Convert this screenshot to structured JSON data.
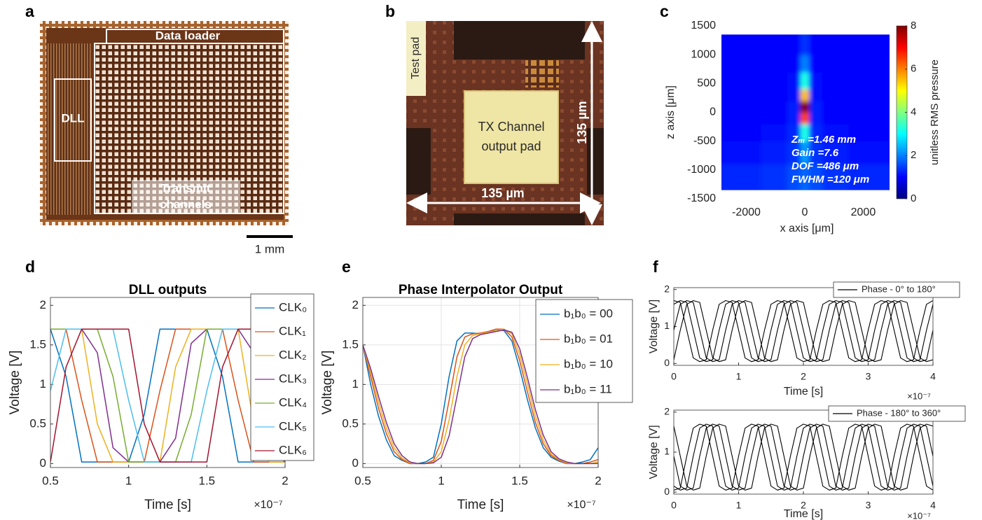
{
  "panel_labels": [
    "a",
    "b",
    "c",
    "d",
    "e",
    "f"
  ],
  "photo_a": {
    "data_loader": "Data loader",
    "dll": "DLL",
    "transmit": [
      "Transmit",
      "channels"
    ],
    "scale": "1 mm"
  },
  "photo_b": {
    "test_pad": "Test pad",
    "pad": [
      "TX Channel",
      "output pad"
    ],
    "dim_x": "135 µm",
    "dim_y": "135 µm"
  },
  "chart_data": [
    {
      "type": "heatmap",
      "xlabel": "x axis [μm]",
      "ylabel": "z axis [μm]",
      "colorbar_label": "unitless RMS pressure",
      "xlim": [
        -2850,
        2900
      ],
      "ylim": [
        -1500,
        1500
      ],
      "xticks": [
        -2000,
        0,
        2000
      ],
      "yticks": [
        -1500,
        -1000,
        -500,
        0,
        500,
        1000,
        1500
      ],
      "clim": [
        0,
        8
      ],
      "cticks": [
        0,
        2,
        4,
        6,
        8
      ],
      "colormap": "jet",
      "xbins": [
        -2850,
        -1500,
        -600,
        -150,
        150,
        600,
        1500,
        2900
      ],
      "zbins": [
        -1350,
        -900,
        -500,
        -200,
        0,
        200,
        400,
        700,
        1000,
        1350
      ],
      "values": [
        [
          1.3,
          1.4,
          1.6,
          1.8,
          1.6,
          1.4,
          1.3
        ],
        [
          1.1,
          1.2,
          1.4,
          2.2,
          1.4,
          1.2,
          1.1
        ],
        [
          1.0,
          1.1,
          1.3,
          3.2,
          1.3,
          1.1,
          1.0
        ],
        [
          1.0,
          1.0,
          1.2,
          6.5,
          1.2,
          1.0,
          1.0
        ],
        [
          1.0,
          1.0,
          1.2,
          8.0,
          1.2,
          1.0,
          1.0
        ],
        [
          1.0,
          1.0,
          1.1,
          5.5,
          1.1,
          1.0,
          1.0
        ],
        [
          1.0,
          1.0,
          1.1,
          3.2,
          1.1,
          1.0,
          1.0
        ],
        [
          1.0,
          1.0,
          1.0,
          2.0,
          1.0,
          1.0,
          1.0
        ],
        [
          1.0,
          1.0,
          1.0,
          1.4,
          1.0,
          1.0,
          1.0
        ]
      ],
      "annotations": [
        "Zₘ =1.46 mm",
        "Gain =7.6",
        "DOF =486 μm",
        "FWHM =120 μm"
      ]
    },
    {
      "type": "line",
      "title": "DLL outputs",
      "xlabel": "Time [s]",
      "ylabel": "Voltage [V]",
      "x_exponent": "×10⁻⁷",
      "xlim": [
        0.5,
        2
      ],
      "ylim": [
        -0.05,
        2.1
      ],
      "xticks": [
        0.5,
        1,
        1.5,
        2
      ],
      "yticks": [
        0,
        0.5,
        1,
        1.5,
        2
      ],
      "grid": false,
      "x": [
        0.5,
        0.6,
        0.7,
        0.8,
        0.9,
        1.0,
        1.1,
        1.2,
        1.3,
        1.4,
        1.5,
        1.6,
        1.7,
        1.8,
        1.9,
        2.0
      ],
      "series": [
        {
          "name": "CLK₀",
          "color": "#0072bd",
          "values": [
            1.7,
            1.1,
            0.02,
            0.02,
            0.02,
            0.02,
            0.62,
            1.7,
            1.7,
            1.7,
            1.7,
            1.1,
            0.02,
            0.02,
            0.02,
            0.02
          ]
        },
        {
          "name": "CLK₁",
          "color": "#d95319",
          "values": [
            1.7,
            1.7,
            0.8,
            0.02,
            0.02,
            0.02,
            0.02,
            0.92,
            1.7,
            1.7,
            1.7,
            1.7,
            0.8,
            0.02,
            0.02,
            0.02
          ]
        },
        {
          "name": "CLK₂",
          "color": "#edb120",
          "values": [
            1.7,
            1.7,
            1.7,
            0.5,
            0.02,
            0.02,
            0.02,
            0.02,
            1.22,
            1.7,
            1.7,
            1.7,
            1.7,
            0.5,
            0.02,
            0.02
          ]
        },
        {
          "name": "CLK₃",
          "color": "#7e2f8e",
          "values": [
            1.7,
            1.7,
            1.7,
            1.4,
            0.2,
            0.02,
            0.02,
            0.02,
            0.32,
            1.52,
            1.7,
            1.7,
            1.7,
            1.4,
            0.2,
            0.02
          ]
        },
        {
          "name": "CLK₄",
          "color": "#77ac30",
          "values": [
            1.7,
            1.7,
            1.7,
            1.7,
            1.1,
            0.02,
            0.02,
            0.02,
            0.02,
            0.62,
            1.7,
            1.7,
            1.7,
            1.7,
            1.1,
            0.02
          ]
        },
        {
          "name": "CLK₅",
          "color": "#4dbeee",
          "values": [
            0.92,
            1.7,
            1.7,
            1.7,
            1.7,
            0.8,
            0.02,
            0.02,
            0.02,
            0.02,
            0.92,
            1.7,
            1.7,
            1.7,
            1.7,
            0.8
          ]
        },
        {
          "name": "CLK₆",
          "color": "#a2142f",
          "values": [
            0.02,
            1.22,
            1.7,
            1.7,
            1.7,
            1.7,
            0.5,
            0.02,
            0.02,
            0.02,
            0.02,
            1.22,
            1.7,
            1.7,
            1.7,
            1.7
          ]
        }
      ]
    },
    {
      "type": "line",
      "title": "Phase Interpolator Output",
      "xlabel": "Time [s]",
      "ylabel": "Voltage [V]",
      "x_exponent": "×10⁻⁷",
      "xlim": [
        0.5,
        2
      ],
      "ylim": [
        -0.05,
        2.1
      ],
      "xticks": [
        0.5,
        1,
        1.5,
        2
      ],
      "yticks": [
        0,
        0.5,
        1,
        1.5,
        2
      ],
      "grid": true,
      "x": [
        0.5,
        0.55,
        0.6,
        0.65,
        0.7,
        0.75,
        0.8,
        0.85,
        0.9,
        0.95,
        1.0,
        1.05,
        1.1,
        1.15,
        1.2,
        1.25,
        1.3,
        1.35,
        1.4,
        1.45,
        1.5,
        1.55,
        1.6,
        1.65,
        1.7,
        1.75,
        1.8,
        1.85,
        1.9,
        1.95,
        2.0
      ],
      "series": [
        {
          "name": "b₁b₀ = 00",
          "color": "#0072bd",
          "values": [
            1.5,
            1.0,
            0.6,
            0.3,
            0.1,
            0.04,
            0.0,
            0.0,
            0.02,
            0.08,
            0.5,
            1.1,
            1.55,
            1.65,
            1.65,
            1.64,
            1.66,
            1.7,
            1.68,
            1.55,
            1.2,
            0.8,
            0.45,
            0.2,
            0.08,
            0.03,
            0.0,
            0.0,
            0.02,
            0.05,
            0.2
          ]
        },
        {
          "name": "b₁b₀ = 01",
          "color": "#d95319",
          "values": [
            1.5,
            1.1,
            0.7,
            0.38,
            0.15,
            0.05,
            0.0,
            0.0,
            0.0,
            0.04,
            0.28,
            0.8,
            1.35,
            1.6,
            1.64,
            1.65,
            1.67,
            1.7,
            1.7,
            1.6,
            1.3,
            0.9,
            0.52,
            0.25,
            0.1,
            0.04,
            0.0,
            0.0,
            0.0,
            0.02,
            0.05
          ]
        },
        {
          "name": "b₁b₀ = 10",
          "color": "#edb120",
          "values": [
            1.5,
            1.15,
            0.78,
            0.45,
            0.2,
            0.07,
            0.01,
            0.0,
            0.0,
            0.02,
            0.15,
            0.55,
            1.1,
            1.5,
            1.62,
            1.64,
            1.66,
            1.68,
            1.7,
            1.64,
            1.38,
            1.0,
            0.6,
            0.3,
            0.12,
            0.05,
            0.01,
            0.0,
            0.0,
            0.0,
            0.02
          ]
        },
        {
          "name": "b₁b₀ = 11",
          "color": "#7e2f8e",
          "values": [
            1.5,
            1.2,
            0.85,
            0.52,
            0.25,
            0.1,
            0.02,
            0.0,
            0.0,
            0.01,
            0.08,
            0.35,
            0.85,
            1.35,
            1.58,
            1.63,
            1.65,
            1.67,
            1.69,
            1.66,
            1.45,
            1.08,
            0.68,
            0.36,
            0.15,
            0.06,
            0.02,
            0.0,
            0.0,
            0.0,
            0.0
          ]
        }
      ]
    },
    {
      "type": "line",
      "xlabel": "Time [s]",
      "ylabel": "Voltage [V]",
      "x_exponent": "×10⁻⁷",
      "legend_label": "Phase - 0° to 180°",
      "color": "#000000",
      "xlim": [
        0,
        4
      ],
      "ylim": [
        -0.05,
        2.05
      ],
      "xticks": [
        0,
        1,
        2,
        3,
        4
      ],
      "yticks": [
        0,
        1,
        2
      ],
      "grid": false,
      "x": [
        0,
        0.1,
        0.2,
        0.3,
        0.4,
        0.5,
        0.6,
        0.7,
        0.8,
        0.9,
        1,
        1.1,
        1.2,
        1.3,
        1.4,
        1.5,
        1.6,
        1.7,
        1.8,
        1.9,
        2,
        2.1,
        2.2,
        2.3,
        2.4,
        2.5,
        2.6,
        2.7,
        2.8,
        2.9,
        3,
        3.1,
        3.2,
        3.3,
        3.4,
        3.5,
        3.6,
        3.7,
        3.8,
        3.9,
        4
      ],
      "series": [
        {
          "values": [
            0.1,
            0.9,
            1.6,
            1.7,
            1.65,
            0.9,
            0.15,
            0.05,
            0.1,
            0.9,
            1.6,
            1.7,
            1.65,
            0.9,
            0.15,
            0.05,
            0.1,
            0.9,
            1.6,
            1.7,
            1.65,
            0.9,
            0.15,
            0.05,
            0.1,
            0.9,
            1.6,
            1.7,
            1.65,
            0.9,
            0.15,
            0.05,
            0.1,
            0.9,
            1.6,
            1.7,
            1.65,
            0.9,
            0.15,
            0.05,
            0.1
          ]
        },
        {
          "values": [
            0.9,
            1.6,
            1.7,
            1.65,
            0.9,
            0.15,
            0.05,
            0.1,
            0.9,
            1.6,
            1.7,
            1.65,
            0.9,
            0.15,
            0.05,
            0.1,
            0.9,
            1.6,
            1.7,
            1.65,
            0.9,
            0.15,
            0.05,
            0.1,
            0.9,
            1.6,
            1.7,
            1.65,
            0.9,
            0.15,
            0.05,
            0.1,
            0.9,
            1.6,
            1.7,
            1.65,
            0.9,
            0.15,
            0.05,
            0.1,
            0.9
          ]
        },
        {
          "values": [
            1.6,
            1.7,
            1.65,
            0.9,
            0.15,
            0.05,
            0.1,
            0.9,
            1.6,
            1.7,
            1.65,
            0.9,
            0.15,
            0.05,
            0.1,
            0.9,
            1.6,
            1.7,
            1.65,
            0.9,
            0.15,
            0.05,
            0.1,
            0.9,
            1.6,
            1.7,
            1.65,
            0.9,
            0.15,
            0.05,
            0.1,
            0.9,
            1.6,
            1.7,
            1.65,
            0.9,
            0.15,
            0.05,
            0.1,
            0.9,
            1.6
          ]
        },
        {
          "values": [
            1.7,
            1.65,
            0.9,
            0.15,
            0.05,
            0.1,
            0.9,
            1.6,
            1.7,
            1.65,
            0.9,
            0.15,
            0.05,
            0.1,
            0.9,
            1.6,
            1.7,
            1.65,
            0.9,
            0.15,
            0.05,
            0.1,
            0.9,
            1.6,
            1.7,
            1.65,
            0.9,
            0.15,
            0.05,
            0.1,
            0.9,
            1.6,
            1.7,
            1.65,
            0.9,
            0.15,
            0.05,
            0.1,
            0.9,
            1.6,
            1.7
          ]
        }
      ]
    },
    {
      "type": "line",
      "xlabel": "Time [s]",
      "ylabel": "Voltage [V]",
      "x_exponent": "×10⁻⁷",
      "legend_label": "Phase - 180° to 360°",
      "color": "#000000",
      "xlim": [
        0,
        4
      ],
      "ylim": [
        -0.05,
        2.05
      ],
      "xticks": [
        0,
        1,
        2,
        3,
        4
      ],
      "yticks": [
        0,
        1,
        2
      ],
      "grid": false,
      "x": [
        0,
        0.1,
        0.2,
        0.3,
        0.4,
        0.5,
        0.6,
        0.7,
        0.8,
        0.9,
        1,
        1.1,
        1.2,
        1.3,
        1.4,
        1.5,
        1.6,
        1.7,
        1.8,
        1.9,
        2,
        2.1,
        2.2,
        2.3,
        2.4,
        2.5,
        2.6,
        2.7,
        2.8,
        2.9,
        3,
        3.1,
        3.2,
        3.3,
        3.4,
        3.5,
        3.6,
        3.7,
        3.8,
        3.9,
        4
      ],
      "series": [
        {
          "values": [
            1.65,
            0.9,
            0.15,
            0.05,
            0.1,
            0.9,
            1.6,
            1.7,
            1.65,
            0.9,
            0.15,
            0.05,
            0.1,
            0.9,
            1.6,
            1.7,
            1.65,
            0.9,
            0.15,
            0.05,
            0.1,
            0.9,
            1.6,
            1.7,
            1.65,
            0.9,
            0.15,
            0.05,
            0.1,
            0.9,
            1.6,
            1.7,
            1.65,
            0.9,
            0.15,
            0.05,
            0.1,
            0.9,
            1.6,
            1.7,
            1.65
          ]
        },
        {
          "values": [
            0.9,
            0.15,
            0.05,
            0.1,
            0.9,
            1.6,
            1.7,
            1.65,
            0.9,
            0.15,
            0.05,
            0.1,
            0.9,
            1.6,
            1.7,
            1.65,
            0.9,
            0.15,
            0.05,
            0.1,
            0.9,
            1.6,
            1.7,
            1.65,
            0.9,
            0.15,
            0.05,
            0.1,
            0.9,
            1.6,
            1.7,
            1.65,
            0.9,
            0.15,
            0.05,
            0.1,
            0.9,
            1.6,
            1.7,
            1.65,
            0.9
          ]
        },
        {
          "values": [
            0.15,
            0.05,
            0.1,
            0.9,
            1.6,
            1.7,
            1.65,
            0.9,
            0.15,
            0.05,
            0.1,
            0.9,
            1.6,
            1.7,
            1.65,
            0.9,
            0.15,
            0.05,
            0.1,
            0.9,
            1.6,
            1.7,
            1.65,
            0.9,
            0.15,
            0.05,
            0.1,
            0.9,
            1.6,
            1.7,
            1.65,
            0.9,
            0.15,
            0.05,
            0.1,
            0.9,
            1.6,
            1.7,
            1.65,
            0.9,
            0.15
          ]
        },
        {
          "values": [
            0.05,
            0.1,
            0.9,
            1.6,
            1.7,
            1.65,
            0.9,
            0.15,
            0.05,
            0.1,
            0.9,
            1.6,
            1.7,
            1.65,
            0.9,
            0.15,
            0.05,
            0.1,
            0.9,
            1.6,
            1.7,
            1.65,
            0.9,
            0.15,
            0.05,
            0.1,
            0.9,
            1.6,
            1.7,
            1.65,
            0.9,
            0.15,
            0.05,
            0.1,
            0.9,
            1.6,
            1.7,
            1.65,
            0.9,
            0.15,
            0.05
          ]
        }
      ]
    }
  ]
}
